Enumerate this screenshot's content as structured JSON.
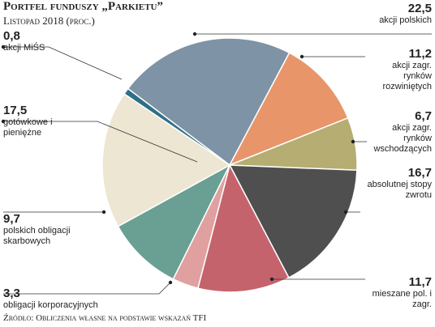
{
  "chart_data": {
    "type": "pie",
    "title": "Portfel funduszy „Parkietu”",
    "subtitle": "Listopad 2018 (proc.)",
    "source": "Źródło: Obliczenia własne na podstawie wskazań TFI",
    "categories": [
      "akcji polskich",
      "akcji zagr. rynków rozwiniętych",
      "akcji zagr. rynków wschodzących",
      "absolutnej stopy zwrotu",
      "mieszane pol. i zagr.",
      "obligacji korporacyjnych",
      "polskich obligacji skarbowych",
      "gotówkowe i pieniężne",
      "akcji MiŚS"
    ],
    "values": [
      22.5,
      11.2,
      6.7,
      16.7,
      11.7,
      3.3,
      9.7,
      17.5,
      0.8
    ],
    "value_labels": [
      "22,5",
      "11,2",
      "6,7",
      "16,7",
      "11,7",
      "3,3",
      "9,7",
      "17,5",
      "0,8"
    ],
    "colors": [
      "#7f93a6",
      "#e8956a",
      "#b5ad72",
      "#4f4f4f",
      "#c5636d",
      "#e0a0a0",
      "#6a9f93",
      "#ece6d2",
      "#2e6f86"
    ]
  }
}
